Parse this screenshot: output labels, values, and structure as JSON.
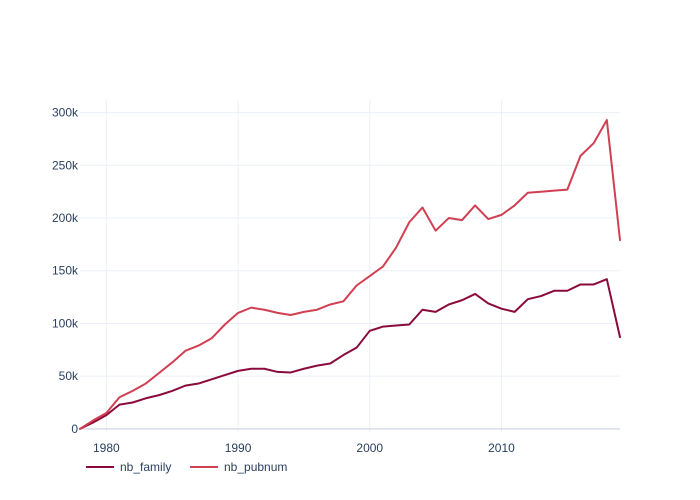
{
  "chart_data": {
    "type": "line",
    "x": [
      1978,
      1979,
      1980,
      1981,
      1982,
      1983,
      1984,
      1985,
      1986,
      1987,
      1988,
      1989,
      1990,
      1991,
      1992,
      1993,
      1994,
      1995,
      1996,
      1997,
      1998,
      1999,
      2000,
      2001,
      2002,
      2003,
      2004,
      2005,
      2006,
      2007,
      2008,
      2009,
      2010,
      2011,
      2012,
      2013,
      2014,
      2015,
      2016,
      2017,
      2018,
      2019
    ],
    "series": [
      {
        "name": "nb_family",
        "color": "#8b0a3c",
        "values": [
          0,
          6000,
          13000,
          23000,
          25000,
          29000,
          32000,
          36000,
          41000,
          43000,
          47000,
          51000,
          55000,
          57000,
          57000,
          54000,
          53500,
          57000,
          60000,
          62000,
          70000,
          77000,
          93000,
          97000,
          98000,
          99000,
          113000,
          111000,
          118000,
          122000,
          128000,
          119000,
          114000,
          111000,
          123000,
          126000,
          131000,
          131000,
          137000,
          137000,
          142000,
          87000
        ]
      },
      {
        "name": "nb_pubnum",
        "color": "#d13f52",
        "values": [
          0,
          8000,
          15000,
          30000,
          36000,
          43000,
          53000,
          63000,
          74000,
          79000,
          86000,
          99000,
          110000,
          115000,
          113000,
          110000,
          108000,
          111000,
          113000,
          118000,
          121000,
          136000,
          145000,
          154000,
          172000,
          196000,
          210000,
          188000,
          200000,
          198000,
          212000,
          199000,
          203000,
          212000,
          224000,
          225000,
          226000,
          227000,
          259000,
          271000,
          293000,
          179000
        ]
      }
    ],
    "xlim": [
      1978,
      2019
    ],
    "ylim": [
      -3000,
      312000
    ],
    "xticks": [
      1980,
      1990,
      2000,
      2010
    ],
    "xtick_labels": [
      "1980",
      "1990",
      "2000",
      "2010"
    ],
    "yticks": [
      0,
      50000,
      100000,
      150000,
      200000,
      250000,
      300000
    ],
    "ytick_labels": [
      "0",
      "50k",
      "100k",
      "150k",
      "200k",
      "250k",
      "300k"
    ],
    "grid": true,
    "legend_position": "bottom-left",
    "legend_orientation": "horizontal",
    "title": "",
    "xlabel": "",
    "ylabel": ""
  }
}
